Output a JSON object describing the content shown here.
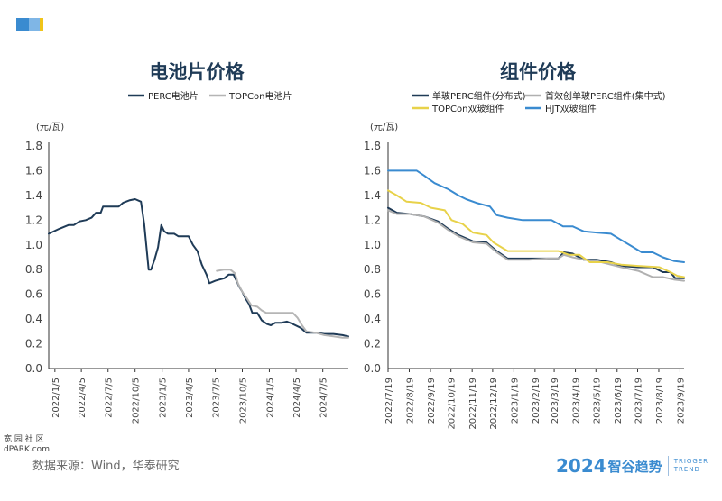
{
  "colors": {
    "accent1": "#3a8bd0",
    "accent2": "#7fb6e6",
    "accent3": "#f0c419"
  },
  "footer": {
    "source": "数据来源：Wind，华泰研究",
    "watermark_line1": "宽 园 社 区",
    "watermark_line2": "dPARK.com",
    "logo_year": "2024",
    "logo_name": "智谷趋势",
    "logo_en_line1": "TRIGGER",
    "logo_en_line2": "TREND"
  },
  "chart_data": [
    {
      "type": "line",
      "title": "电池片价格",
      "ylabel": "(元/瓦)",
      "ylim": [
        0,
        1.8
      ],
      "yticks": [
        "1.8",
        "1.6",
        "1.4",
        "1.2",
        "1.0",
        "0.8",
        "0.6",
        "0.4",
        "0.2",
        "0.0"
      ],
      "xlim": [
        "2021-12-15",
        "2024-09-30"
      ],
      "x_ticks": [
        {
          "date": "2022-01-05",
          "label": "2022/1/5"
        },
        {
          "date": "2022-04-05",
          "label": "2022/4/5"
        },
        {
          "date": "2022-07-05",
          "label": "2022/7/5"
        },
        {
          "date": "2022-10-05",
          "label": "2022/10/5"
        },
        {
          "date": "2023-01-05",
          "label": "2023/1/5"
        },
        {
          "date": "2023-04-05",
          "label": "2023/4/5"
        },
        {
          "date": "2023-07-05",
          "label": "2023/7/5"
        },
        {
          "date": "2023-10-05",
          "label": "2023/10/5"
        },
        {
          "date": "2024-01-05",
          "label": "2024/1/5"
        },
        {
          "date": "2024-04-05",
          "label": "2024/4/5"
        },
        {
          "date": "2024-07-05",
          "label": "2024/7/5"
        }
      ],
      "legend": "top",
      "series": [
        {
          "name": "PERC电池片",
          "color": "#1f3b57",
          "points": [
            [
              "2021-12-15",
              1.09
            ],
            [
              "2022-01-20",
              1.13
            ],
            [
              "2022-02-20",
              1.16
            ],
            [
              "2022-03-10",
              1.16
            ],
            [
              "2022-03-30",
              1.19
            ],
            [
              "2022-04-20",
              1.2
            ],
            [
              "2022-05-10",
              1.22
            ],
            [
              "2022-05-25",
              1.26
            ],
            [
              "2022-06-10",
              1.26
            ],
            [
              "2022-06-18",
              1.31
            ],
            [
              "2022-07-20",
              1.31
            ],
            [
              "2022-08-10",
              1.31
            ],
            [
              "2022-08-25",
              1.34
            ],
            [
              "2022-09-15",
              1.36
            ],
            [
              "2022-10-05",
              1.37
            ],
            [
              "2022-10-25",
              1.35
            ],
            [
              "2022-11-05",
              1.17
            ],
            [
              "2022-11-20",
              0.8
            ],
            [
              "2022-11-28",
              0.8
            ],
            [
              "2022-12-10",
              0.88
            ],
            [
              "2022-12-22",
              0.98
            ],
            [
              "2023-01-02",
              1.16
            ],
            [
              "2023-01-12",
              1.11
            ],
            [
              "2023-01-25",
              1.09
            ],
            [
              "2023-02-15",
              1.09
            ],
            [
              "2023-03-01",
              1.07
            ],
            [
              "2023-03-20",
              1.07
            ],
            [
              "2023-04-05",
              1.07
            ],
            [
              "2023-04-20",
              1.0
            ],
            [
              "2023-05-05",
              0.95
            ],
            [
              "2023-05-20",
              0.84
            ],
            [
              "2023-06-05",
              0.76
            ],
            [
              "2023-06-15",
              0.69
            ],
            [
              "2023-07-05",
              0.71
            ],
            [
              "2023-07-20",
              0.72
            ],
            [
              "2023-08-05",
              0.73
            ],
            [
              "2023-08-20",
              0.76
            ],
            [
              "2023-09-05",
              0.76
            ],
            [
              "2023-09-15",
              0.71
            ],
            [
              "2023-09-25",
              0.66
            ],
            [
              "2023-10-05",
              0.62
            ],
            [
              "2023-10-15",
              0.57
            ],
            [
              "2023-10-28",
              0.52
            ],
            [
              "2023-11-08",
              0.45
            ],
            [
              "2023-11-25",
              0.45
            ],
            [
              "2023-12-10",
              0.39
            ],
            [
              "2023-12-28",
              0.36
            ],
            [
              "2024-01-10",
              0.35
            ],
            [
              "2024-01-25",
              0.37
            ],
            [
              "2024-02-15",
              0.37
            ],
            [
              "2024-03-05",
              0.38
            ],
            [
              "2024-03-25",
              0.36
            ],
            [
              "2024-04-20",
              0.33
            ],
            [
              "2024-05-10",
              0.29
            ],
            [
              "2024-06-10",
              0.29
            ],
            [
              "2024-07-10",
              0.28
            ],
            [
              "2024-08-10",
              0.28
            ],
            [
              "2024-09-10",
              0.27
            ],
            [
              "2024-09-30",
              0.26
            ]
          ]
        },
        {
          "name": "TOPCon电池片",
          "color": "#b5b5b5",
          "points": [
            [
              "2023-07-10",
              0.79
            ],
            [
              "2023-08-05",
              0.8
            ],
            [
              "2023-08-25",
              0.8
            ],
            [
              "2023-09-10",
              0.77
            ],
            [
              "2023-09-20",
              0.69
            ],
            [
              "2023-10-05",
              0.62
            ],
            [
              "2023-10-20",
              0.57
            ],
            [
              "2023-11-05",
              0.51
            ],
            [
              "2023-11-25",
              0.5
            ],
            [
              "2023-12-10",
              0.47
            ],
            [
              "2023-12-25",
              0.45
            ],
            [
              "2024-01-20",
              0.45
            ],
            [
              "2024-03-10",
              0.45
            ],
            [
              "2024-03-25",
              0.45
            ],
            [
              "2024-04-10",
              0.41
            ],
            [
              "2024-04-25",
              0.35
            ],
            [
              "2024-05-10",
              0.3
            ],
            [
              "2024-06-10",
              0.29
            ],
            [
              "2024-07-10",
              0.27
            ],
            [
              "2024-08-10",
              0.26
            ],
            [
              "2024-09-10",
              0.25
            ],
            [
              "2024-09-30",
              0.25
            ]
          ]
        }
      ]
    },
    {
      "type": "line",
      "title": "组件价格",
      "ylabel": "(元/瓦)",
      "ylim": [
        0,
        1.8
      ],
      "yticks": [
        "1.8",
        "1.6",
        "1.4",
        "1.2",
        "1.0",
        "0.8",
        "0.6",
        "0.4",
        "0.2",
        "0.0"
      ],
      "xlim": [
        "2022-07-19",
        "2023-09-25"
      ],
      "x_ticks": [
        {
          "date": "2022-07-19",
          "label": "2022/7/19"
        },
        {
          "date": "2022-08-19",
          "label": "2022/8/19"
        },
        {
          "date": "2022-09-19",
          "label": "2022/9/19"
        },
        {
          "date": "2022-10-19",
          "label": "2022/10/19"
        },
        {
          "date": "2022-11-19",
          "label": "2022/11/19"
        },
        {
          "date": "2022-12-19",
          "label": "2022/12/19"
        },
        {
          "date": "2023-01-19",
          "label": "2023/1/19"
        },
        {
          "date": "2023-02-19",
          "label": "2023/2/19"
        },
        {
          "date": "2023-03-19",
          "label": "2023/3/19"
        },
        {
          "date": "2023-04-19",
          "label": "2023/4/19"
        },
        {
          "date": "2023-05-19",
          "label": "2023/5/19"
        },
        {
          "date": "2023-06-19",
          "label": "2023/6/19"
        },
        {
          "date": "2023-07-19",
          "label": "2023/7/19"
        },
        {
          "date": "2023-08-19",
          "label": "2023/8/19"
        },
        {
          "date": "2023-09-19",
          "label": "2023/9/19"
        }
      ],
      "legend": "top",
      "series": [
        {
          "name": "单玻PERC组件(分布式)",
          "color": "#1f3b57",
          "points": [
            [
              "2022-07-19",
              1.3
            ],
            [
              "2022-08-01",
              1.26
            ],
            [
              "2022-08-20",
              1.25
            ],
            [
              "2022-09-10",
              1.23
            ],
            [
              "2022-09-30",
              1.19
            ],
            [
              "2022-10-15",
              1.13
            ],
            [
              "2022-10-30",
              1.08
            ],
            [
              "2022-11-20",
              1.03
            ],
            [
              "2022-12-10",
              1.02
            ],
            [
              "2022-12-25",
              0.95
            ],
            [
              "2023-01-10",
              0.89
            ],
            [
              "2023-02-10",
              0.89
            ],
            [
              "2023-03-10",
              0.89
            ],
            [
              "2023-03-25",
              0.89
            ],
            [
              "2023-04-02",
              0.94
            ],
            [
              "2023-04-15",
              0.93
            ],
            [
              "2023-05-01",
              0.88
            ],
            [
              "2023-05-20",
              0.88
            ],
            [
              "2023-06-10",
              0.86
            ],
            [
              "2023-06-25",
              0.83
            ],
            [
              "2023-07-20",
              0.82
            ],
            [
              "2023-08-10",
              0.82
            ],
            [
              "2023-08-25",
              0.78
            ],
            [
              "2023-09-05",
              0.78
            ],
            [
              "2023-09-12",
              0.73
            ],
            [
              "2023-09-25",
              0.73
            ]
          ]
        },
        {
          "name": "首效创单玻PERC组件(集中式)",
          "color": "#b0b0b0",
          "points": [
            [
              "2022-07-19",
              1.28
            ],
            [
              "2022-08-01",
              1.25
            ],
            [
              "2022-08-20",
              1.25
            ],
            [
              "2022-09-10",
              1.23
            ],
            [
              "2022-09-30",
              1.18
            ],
            [
              "2022-10-15",
              1.12
            ],
            [
              "2022-10-30",
              1.07
            ],
            [
              "2022-11-20",
              1.02
            ],
            [
              "2022-12-10",
              1.01
            ],
            [
              "2022-12-25",
              0.94
            ],
            [
              "2023-01-10",
              0.88
            ],
            [
              "2023-02-10",
              0.88
            ],
            [
              "2023-03-10",
              0.89
            ],
            [
              "2023-03-25",
              0.89
            ],
            [
              "2023-04-02",
              0.92
            ],
            [
              "2023-04-15",
              0.9
            ],
            [
              "2023-05-01",
              0.88
            ],
            [
              "2023-05-20",
              0.87
            ],
            [
              "2023-06-10",
              0.84
            ],
            [
              "2023-06-25",
              0.82
            ],
            [
              "2023-07-20",
              0.79
            ],
            [
              "2023-08-10",
              0.74
            ],
            [
              "2023-08-25",
              0.74
            ],
            [
              "2023-09-10",
              0.72
            ],
            [
              "2023-09-25",
              0.71
            ]
          ]
        },
        {
          "name": "TOPCon双玻组件",
          "color": "#e8d24a",
          "points": [
            [
              "2022-07-19",
              1.44
            ],
            [
              "2022-08-01",
              1.4
            ],
            [
              "2022-08-15",
              1.35
            ],
            [
              "2022-09-05",
              1.34
            ],
            [
              "2022-09-20",
              1.3
            ],
            [
              "2022-10-10",
              1.28
            ],
            [
              "2022-10-20",
              1.2
            ],
            [
              "2022-11-05",
              1.17
            ],
            [
              "2022-11-20",
              1.1
            ],
            [
              "2022-12-10",
              1.08
            ],
            [
              "2022-12-20",
              1.02
            ],
            [
              "2023-01-10",
              0.95
            ],
            [
              "2023-02-10",
              0.95
            ],
            [
              "2023-03-10",
              0.95
            ],
            [
              "2023-03-25",
              0.95
            ],
            [
              "2023-04-10",
              0.92
            ],
            [
              "2023-04-25",
              0.92
            ],
            [
              "2023-05-10",
              0.86
            ],
            [
              "2023-06-05",
              0.86
            ],
            [
              "2023-06-25",
              0.84
            ],
            [
              "2023-07-20",
              0.83
            ],
            [
              "2023-08-20",
              0.82
            ],
            [
              "2023-09-05",
              0.78
            ],
            [
              "2023-09-15",
              0.75
            ],
            [
              "2023-09-25",
              0.74
            ]
          ]
        },
        {
          "name": "HJT双玻组件",
          "color": "#3a8bd0",
          "points": [
            [
              "2022-07-19",
              1.6
            ],
            [
              "2022-08-15",
              1.6
            ],
            [
              "2022-08-30",
              1.6
            ],
            [
              "2022-09-10",
              1.56
            ],
            [
              "2022-09-25",
              1.5
            ],
            [
              "2022-10-15",
              1.45
            ],
            [
              "2022-10-30",
              1.4
            ],
            [
              "2022-11-10",
              1.37
            ],
            [
              "2022-11-25",
              1.34
            ],
            [
              "2022-12-15",
              1.31
            ],
            [
              "2022-12-25",
              1.24
            ],
            [
              "2023-01-10",
              1.22
            ],
            [
              "2023-02-01",
              1.2
            ],
            [
              "2023-03-15",
              1.2
            ],
            [
              "2023-04-01",
              1.15
            ],
            [
              "2023-04-15",
              1.15
            ],
            [
              "2023-05-01",
              1.11
            ],
            [
              "2023-05-20",
              1.1
            ],
            [
              "2023-06-10",
              1.09
            ],
            [
              "2023-06-25",
              1.04
            ],
            [
              "2023-07-10",
              0.99
            ],
            [
              "2023-07-25",
              0.94
            ],
            [
              "2023-08-10",
              0.94
            ],
            [
              "2023-08-25",
              0.9
            ],
            [
              "2023-09-10",
              0.87
            ],
            [
              "2023-09-25",
              0.86
            ]
          ]
        }
      ]
    }
  ]
}
